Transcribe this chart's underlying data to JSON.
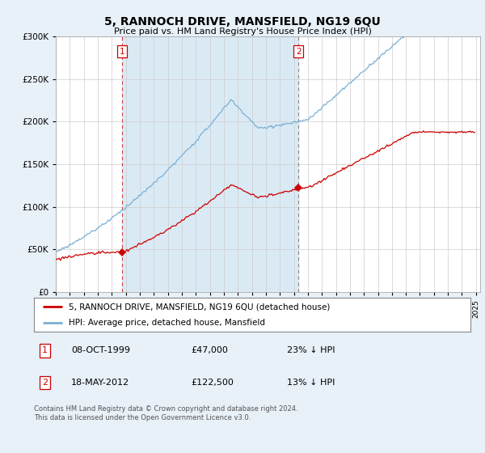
{
  "title": "5, RANNOCH DRIVE, MANSFIELD, NG19 6QU",
  "subtitle": "Price paid vs. HM Land Registry's House Price Index (HPI)",
  "legend_line1": "5, RANNOCH DRIVE, MANSFIELD, NG19 6QU (detached house)",
  "legend_line2": "HPI: Average price, detached house, Mansfield",
  "transaction1_date": "08-OCT-1999",
  "transaction1_price": "£47,000",
  "transaction1_hpi": "23% ↓ HPI",
  "transaction2_date": "18-MAY-2012",
  "transaction2_price": "£122,500",
  "transaction2_hpi": "13% ↓ HPI",
  "footer": "Contains HM Land Registry data © Crown copyright and database right 2024.\nThis data is licensed under the Open Government Licence v3.0.",
  "red_color": "#cc0000",
  "blue_color": "#7ab0d4",
  "fill_color": "#daeaf5",
  "bg_color": "#e8f0f8",
  "plot_bg": "#ffffff",
  "grid_color": "#cccccc",
  "ylim": [
    0,
    300000
  ],
  "yticks": [
    0,
    50000,
    100000,
    150000,
    200000,
    250000,
    300000
  ]
}
